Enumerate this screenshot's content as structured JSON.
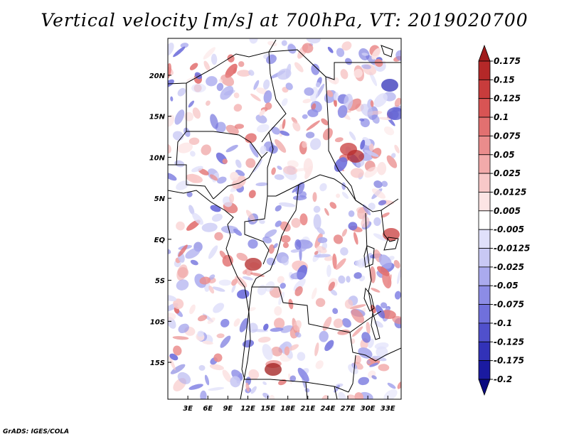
{
  "title": "Vertical velocity [m/s] at 700hPa, VT: 2019020700",
  "credit": "GrADS: IGES/COLA",
  "map": {
    "lat_labels": [
      "20N",
      "15N",
      "10N",
      "5N",
      "EQ",
      "5S",
      "10S",
      "15S"
    ],
    "lon_labels": [
      "3E",
      "6E",
      "9E",
      "12E",
      "15E",
      "18E",
      "21E",
      "24E",
      "27E",
      "30E",
      "33E"
    ],
    "lat_values": [
      20,
      15,
      10,
      5,
      0,
      -5,
      -10,
      -15
    ],
    "lon_values": [
      3,
      6,
      9,
      12,
      15,
      18,
      21,
      24,
      27,
      30,
      33
    ],
    "lat_range": [
      -19.5,
      24.5
    ],
    "lon_range": [
      0,
      35
    ]
  },
  "colorbar": {
    "levels": [
      "0.175",
      "0.15",
      "0.125",
      "0.1",
      "0.075",
      "0.05",
      "0.025",
      "0.0125",
      "0.005",
      "-0.005",
      "-0.0125",
      "-0.025",
      "-0.05",
      "-0.075",
      "-0.1",
      "-0.125",
      "-0.175",
      "-0.2"
    ],
    "colors": [
      "#a01c1c",
      "#b42828",
      "#c83c3c",
      "#d85454",
      "#e27070",
      "#ea8c8c",
      "#f2aaaa",
      "#f8c8c8",
      "#fce4e4",
      "#ffffff",
      "#e0e0fa",
      "#c8c8f4",
      "#aaaaee",
      "#8c8ce6",
      "#7070dc",
      "#5050cc",
      "#3232b8",
      "#1a1aa0",
      "#0a0a80"
    ]
  },
  "chart_data": {
    "type": "heatmap",
    "title": "Vertical velocity [m/s] at 700hPa, VT: 2019020700",
    "variable": "Vertical velocity",
    "units": "m/s",
    "level": "700hPa",
    "valid_time": "2019020700",
    "x": [
      3,
      6,
      9,
      12,
      15,
      18,
      21,
      24,
      27,
      30,
      33
    ],
    "y": [
      20,
      15,
      10,
      5,
      0,
      -5,
      -10,
      -15
    ],
    "xlabel": "",
    "ylabel": ""
  }
}
